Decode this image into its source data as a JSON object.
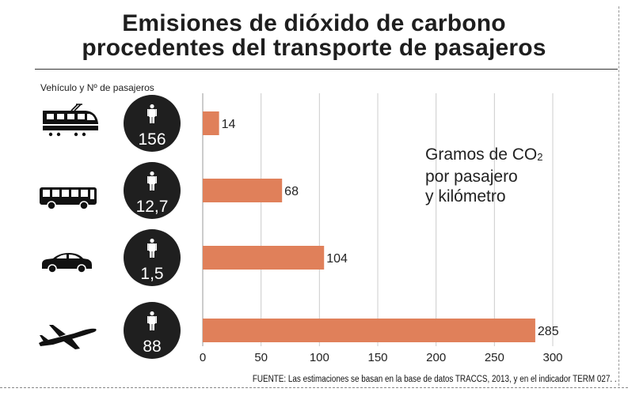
{
  "title_line1": "Emisiones de dióxido de carbono",
  "title_line2": "procedentes del transporte de pasajeros",
  "subhead": "Vehículo y Nº de pasajeros",
  "legend": {
    "line1": "Gramos de CO",
    "sub": "2",
    "line2": "por pasajero",
    "line3": "y kilómetro"
  },
  "source": "FUENTE: Las estimaciones se basan en la base de datos TRACCS, 2013, y en el indicador TERM 027.  .",
  "colors": {
    "bar": "#e0805a",
    "circle": "#1f1f1f",
    "grid": "#cccccc",
    "text": "#222222"
  },
  "vehicles": [
    {
      "icon": "train-icon",
      "passengers": "156"
    },
    {
      "icon": "bus-icon",
      "passengers": "12,7"
    },
    {
      "icon": "car-icon",
      "passengers": "1,5"
    },
    {
      "icon": "airplane-icon",
      "passengers": "88"
    }
  ],
  "chart_data": {
    "type": "bar",
    "orientation": "horizontal",
    "categories": [
      "156",
      "12,7",
      "1,5",
      "88"
    ],
    "values": [
      14,
      68,
      104,
      285
    ],
    "value_labels": [
      "14",
      "68",
      "104",
      "285"
    ],
    "xlim": [
      0,
      300
    ],
    "xticks": [
      0,
      50,
      100,
      150,
      200,
      250,
      300
    ],
    "xtick_labels": [
      "0",
      "50",
      "100",
      "150",
      "200",
      "250",
      "300"
    ],
    "grid": true
  }
}
